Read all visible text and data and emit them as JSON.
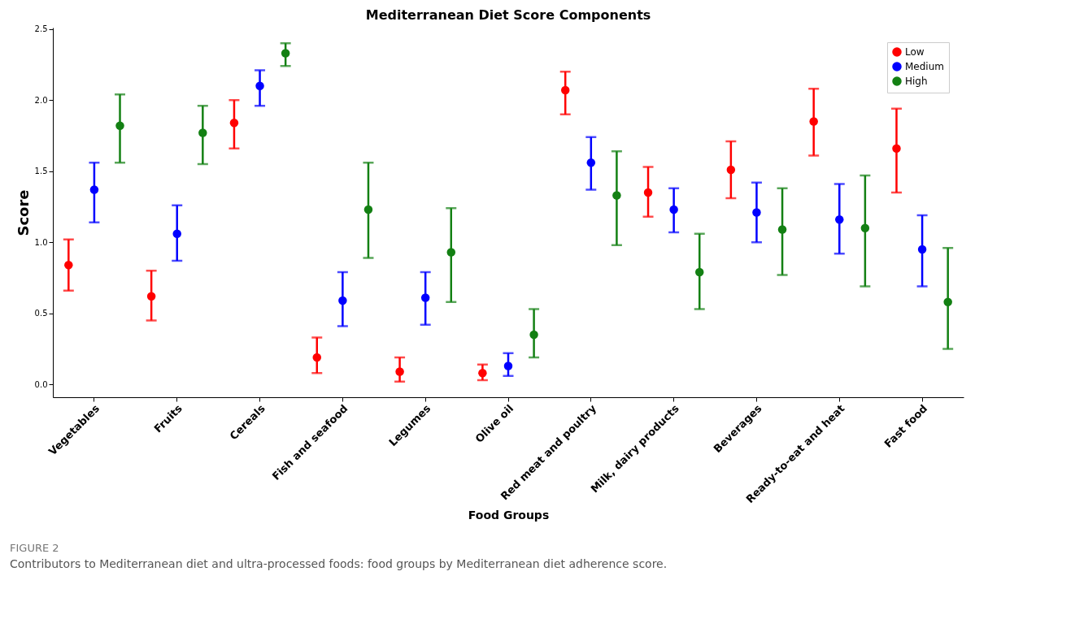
{
  "chart_data": {
    "type": "scatter",
    "title": "Mediterranean Diet Score Components",
    "xlabel": "Food Groups",
    "ylabel": "Score",
    "categories": [
      "Vegetables",
      "Fruits",
      "Cereals",
      "Fish and seafood",
      "Legumes",
      "Olive oil",
      "Red meat and poultry",
      "Milk, dairy products",
      "Beverages",
      "Ready-to-eat and heat",
      "Fast food"
    ],
    "series": [
      {
        "name": "Low",
        "color": "#ff0000",
        "values": [
          0.84,
          0.62,
          1.84,
          0.19,
          0.09,
          0.08,
          2.07,
          1.35,
          1.51,
          1.85,
          1.66
        ],
        "errors": [
          [
            0.66,
            1.02
          ],
          [
            0.45,
            0.8
          ],
          [
            1.66,
            2.0
          ],
          [
            0.08,
            0.33
          ],
          [
            0.02,
            0.19
          ],
          [
            0.03,
            0.14
          ],
          [
            1.9,
            2.2
          ],
          [
            1.18,
            1.53
          ],
          [
            1.31,
            1.71
          ],
          [
            1.61,
            2.08
          ],
          [
            1.35,
            1.94
          ]
        ]
      },
      {
        "name": "Medium",
        "color": "#0000ff",
        "values": [
          1.37,
          1.06,
          2.1,
          0.59,
          0.61,
          0.13,
          1.56,
          1.23,
          1.21,
          1.16,
          0.95
        ],
        "errors": [
          [
            1.14,
            1.56
          ],
          [
            0.87,
            1.26
          ],
          [
            1.96,
            2.21
          ],
          [
            0.41,
            0.79
          ],
          [
            0.42,
            0.79
          ],
          [
            0.06,
            0.22
          ],
          [
            1.37,
            1.74
          ],
          [
            1.07,
            1.38
          ],
          [
            1.0,
            1.42
          ],
          [
            0.92,
            1.41
          ],
          [
            0.69,
            1.19
          ]
        ]
      },
      {
        "name": "High",
        "color": "#138013",
        "values": [
          1.82,
          1.77,
          2.33,
          1.23,
          0.93,
          0.35,
          1.33,
          0.79,
          1.09,
          1.1,
          0.58
        ],
        "errors": [
          [
            1.56,
            2.04
          ],
          [
            1.55,
            1.96
          ],
          [
            2.24,
            2.4
          ],
          [
            0.89,
            1.56
          ],
          [
            0.58,
            1.24
          ],
          [
            0.19,
            0.53
          ],
          [
            0.98,
            1.64
          ],
          [
            0.53,
            1.06
          ],
          [
            0.77,
            1.38
          ],
          [
            0.69,
            1.47
          ],
          [
            0.25,
            0.96
          ]
        ]
      }
    ],
    "ylim": [
      -0.09,
      2.51
    ],
    "yticks": [
      {
        "value": 0,
        "label": "0.0"
      },
      0.5,
      {
        "value": 1,
        "label": "1.0"
      },
      1.5,
      {
        "value": 2,
        "label": "2.0"
      },
      2.5
    ],
    "grid": false,
    "legend": "top right",
    "marker": "circle",
    "annotations": [
      "FIGURE 2",
      "Contributors to Mediterranean diet and ultra-processed foods: food groups by Mediterranean diet adherence score."
    ]
  }
}
